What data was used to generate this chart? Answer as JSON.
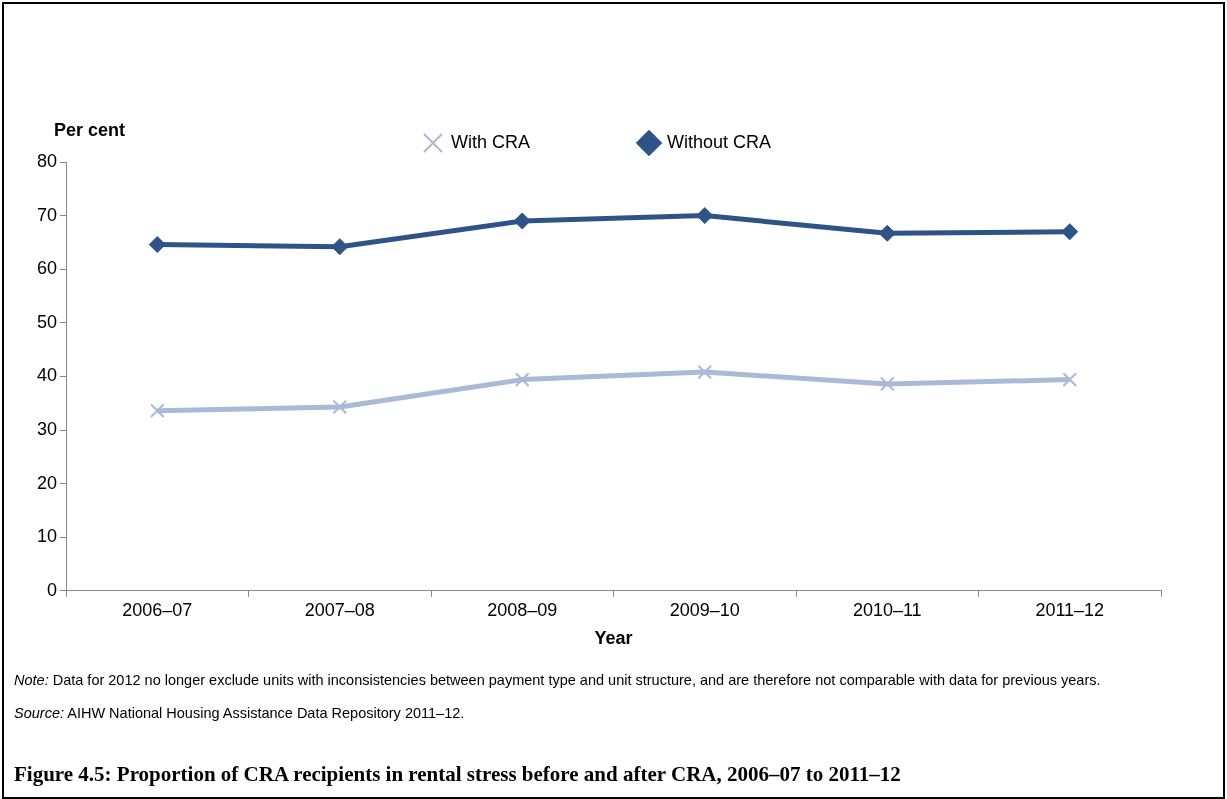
{
  "chart_data": {
    "type": "line",
    "title": "Figure 4.5: Proportion of CRA recipients in rental stress before and after CRA, 2006–07 to 2011–12",
    "xlabel": "Year",
    "ylabel": "Per cent",
    "categories": [
      "2006–07",
      "2007–08",
      "2008–09",
      "2009–10",
      "2010–11",
      "2011–12"
    ],
    "series": [
      {
        "name": "With CRA",
        "color": "#a9b9d6",
        "marker": "cross",
        "values": [
          33.6,
          34.3,
          39.4,
          40.8,
          38.6,
          39.4
        ]
      },
      {
        "name": "Without CRA",
        "color": "#2e5487",
        "marker": "diamond",
        "values": [
          64.6,
          64.2,
          69.0,
          70.0,
          66.7,
          67.0
        ]
      }
    ],
    "ylim": [
      0,
      80
    ],
    "yticks": [
      0,
      10,
      20,
      30,
      40,
      50,
      60,
      70,
      80
    ],
    "grid": false,
    "legend": "top",
    "line_style": "solid",
    "annotations": [
      "Note: Data for 2012 no longer exclude units with inconsistencies between payment type and unit structure, and are therefore not comparable with data for previous years.",
      "Source: AIHW National Housing Assistance Data Repository 2011–12."
    ]
  }
}
